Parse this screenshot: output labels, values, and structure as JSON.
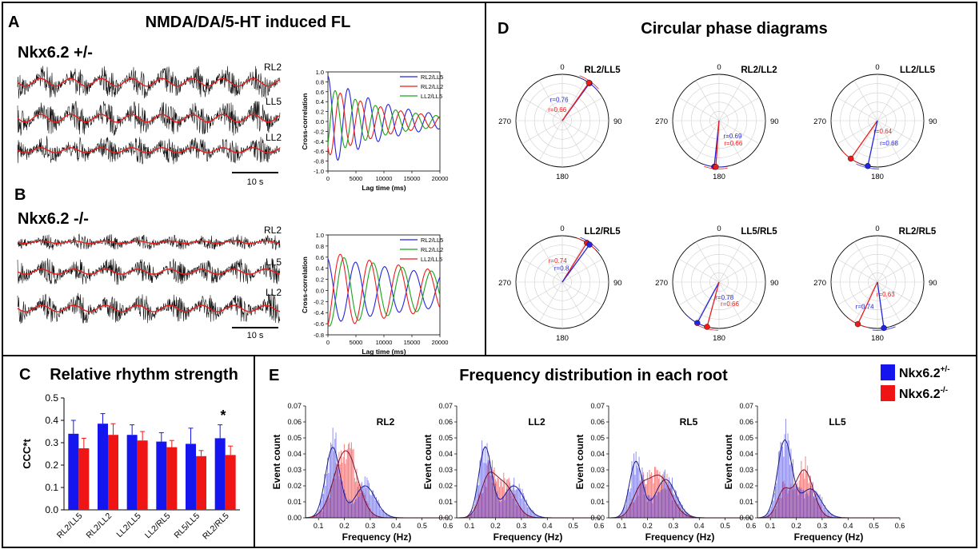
{
  "colors": {
    "blue": "#2323e0",
    "red": "#ee1b1b",
    "green": "#18a318",
    "black": "#000000",
    "purple": "#a03080"
  },
  "panel_a": {
    "letter": "A",
    "title": "NMDA/DA/5-HT induced FL",
    "genotype": "Nkx6.2 +/-",
    "trace_labels": [
      "RL2",
      "LL5",
      "LL2"
    ],
    "scale_bar": "10 s"
  },
  "panel_b": {
    "letter": "B",
    "genotype": "Nkx6.2 -/-",
    "trace_labels": [
      "RL2",
      "LL5",
      "LL2"
    ],
    "scale_bar": "10 s"
  },
  "panel_c": {
    "letter": "C",
    "title": "Relative rhythm strength",
    "asterisk": "*"
  },
  "panel_d": {
    "letter": "D",
    "title": "Circular phase diagrams",
    "angle_labels": [
      "0",
      "90",
      "180",
      "270"
    ]
  },
  "panel_e": {
    "letter": "E",
    "title": "Frequency distribution in each root",
    "legend": {
      "het_label": "Nkx6.2",
      "het_sup": "+/-",
      "ko_label": "Nkx6.2",
      "ko_sup": "-/-"
    }
  },
  "chart_data": [
    {
      "id": "xcorr_het",
      "type": "line",
      "title": "",
      "xlabel": "Lag time (ms)",
      "ylabel": "Cross-correlation",
      "xlim": [
        0,
        20000
      ],
      "ylim": [
        -1.0,
        1.0
      ],
      "xticks": [
        0,
        5000,
        10000,
        15000,
        20000
      ],
      "yticks": [
        -1.0,
        -0.8,
        -0.6,
        -0.4,
        -0.2,
        0.0,
        0.2,
        0.4,
        0.6,
        0.8,
        1.0
      ],
      "legend_position": "top-right",
      "series": [
        {
          "name": "RL2/LL5",
          "color": "#2323e0",
          "amp": 0.92,
          "period": 3600,
          "phase": 0,
          "decay": 11000
        },
        {
          "name": "RL2/LL2",
          "color": "#ee1b1b",
          "amp": 0.7,
          "period": 3600,
          "phase": 2.4,
          "decay": 11000
        },
        {
          "name": "LL2/LL5",
          "color": "#18a318",
          "amp": 0.7,
          "period": 3600,
          "phase": 4.0,
          "decay": 11000
        }
      ]
    },
    {
      "id": "xcorr_ko",
      "type": "line",
      "title": "",
      "xlabel": "Lag time (ms)",
      "ylabel": "Cross-correlation",
      "xlim": [
        0,
        20000
      ],
      "ylim": [
        -0.8,
        1.0
      ],
      "xticks": [
        0,
        5000,
        10000,
        15000,
        20000
      ],
      "yticks": [
        -0.8,
        -0.6,
        -0.4,
        -0.2,
        0.0,
        0.2,
        0.4,
        0.6,
        0.8,
        1.0
      ],
      "legend_position": "top-right",
      "series": [
        {
          "name": "RL2/LL5",
          "color": "#2323e0",
          "amp": 0.6,
          "period": 5200,
          "phase": 0.3,
          "decay": 30000
        },
        {
          "name": "RL2/LL2",
          "color": "#18a318",
          "amp": 0.65,
          "period": 5200,
          "phase": 2.8,
          "decay": 30000
        },
        {
          "name": "LL2/LL5",
          "color": "#ee1b1b",
          "amp": 0.7,
          "period": 5200,
          "phase": 3.6,
          "decay": 30000
        }
      ]
    },
    {
      "id": "rhythm_strength",
      "type": "bar",
      "title": "Relative rhythm strength",
      "ylabel": "CCC*t",
      "ylim": [
        0.0,
        0.5
      ],
      "yticks": [
        0.0,
        0.1,
        0.2,
        0.3,
        0.4,
        0.5
      ],
      "categories": [
        "RL2/LL5",
        "RL2/LL2",
        "LL2/LL5",
        "LL2/RL5",
        "RL5/LL5",
        "RL2/RL5"
      ],
      "series": [
        {
          "name": "Nkx6.2 +/-",
          "color": "#1515f0",
          "values": [
            0.34,
            0.385,
            0.335,
            0.305,
            0.295,
            0.32
          ],
          "errors": [
            0.06,
            0.045,
            0.045,
            0.04,
            0.07,
            0.06
          ]
        },
        {
          "name": "Nkx6.2 -/-",
          "color": "#f01515",
          "values": [
            0.275,
            0.335,
            0.31,
            0.28,
            0.24,
            0.245
          ],
          "errors": [
            0.045,
            0.05,
            0.04,
            0.03,
            0.025,
            0.04
          ]
        }
      ]
    },
    {
      "id": "polar",
      "type": "scatter",
      "angle_labels": [
        "0",
        "90",
        "180",
        "270"
      ],
      "plots": [
        {
          "title": "RL2/LL5",
          "points": [
            {
              "color": "#2323e0",
              "deg": 36,
              "r": 0.76,
              "label": "r=0.76"
            },
            {
              "color": "#ee1b1b",
              "deg": 35,
              "r": 0.66,
              "label": "r=0.66"
            }
          ]
        },
        {
          "title": "RL2/LL2",
          "points": [
            {
              "color": "#2323e0",
              "deg": 186,
              "r": 0.69,
              "label": "r=0.69"
            },
            {
              "color": "#ee1b1b",
              "deg": 184,
              "r": 0.66,
              "label": "r=0.66"
            }
          ]
        },
        {
          "title": "LL2/LL5",
          "points": [
            {
              "color": "#ee1b1b",
              "deg": 215,
              "r": 0.64,
              "label": "r=0.64"
            },
            {
              "color": "#2323e0",
              "deg": 192,
              "r": 0.68,
              "label": "r=0.68"
            }
          ]
        },
        {
          "title": "LL2/RL5",
          "points": [
            {
              "color": "#ee1b1b",
              "deg": 32,
              "r": 0.74,
              "label": "r=0.74"
            },
            {
              "color": "#2323e0",
              "deg": 36,
              "r": 0.8,
              "label": "r=0.8"
            }
          ]
        },
        {
          "title": "LL5/RL5",
          "points": [
            {
              "color": "#2323e0",
              "deg": 208,
              "r": 0.78,
              "label": "r=0.78"
            },
            {
              "color": "#ee1b1b",
              "deg": 195,
              "r": 0.66,
              "label": "r=0.66"
            }
          ]
        },
        {
          "title": "RL2/RL5",
          "points": [
            {
              "color": "#ee1b1b",
              "deg": 205,
              "r": 0.63,
              "label": "r=0.63"
            },
            {
              "color": "#2323e0",
              "deg": 172,
              "r": 0.74,
              "label": "r=0.74"
            }
          ]
        }
      ]
    },
    {
      "id": "freq_hist",
      "type": "area",
      "xlabel": "Frequency (Hz)",
      "ylabel": "Event count",
      "xlim": [
        0.05,
        0.6
      ],
      "ylim": [
        0,
        0.07
      ],
      "xticks": [
        0.1,
        0.2,
        0.3,
        0.4,
        0.5,
        0.6
      ],
      "yticks": [
        0.0,
        0.01,
        0.02,
        0.03,
        0.04,
        0.05,
        0.06,
        0.07
      ],
      "plots": [
        {
          "title": "RL2",
          "het": [
            {
              "mu": 0.155,
              "sd": 0.028,
              "amp": 0.044
            },
            {
              "mu": 0.28,
              "sd": 0.04,
              "amp": 0.02
            }
          ],
          "ko": [
            {
              "mu": 0.205,
              "sd": 0.045,
              "amp": 0.042
            }
          ]
        },
        {
          "title": "LL2",
          "het": [
            {
              "mu": 0.16,
              "sd": 0.025,
              "amp": 0.044
            },
            {
              "mu": 0.27,
              "sd": 0.04,
              "amp": 0.02
            }
          ],
          "ko": [
            {
              "mu": 0.17,
              "sd": 0.03,
              "amp": 0.022
            },
            {
              "mu": 0.235,
              "sd": 0.04,
              "amp": 0.02
            }
          ]
        },
        {
          "title": "RL5",
          "het": [
            {
              "mu": 0.155,
              "sd": 0.025,
              "amp": 0.035
            },
            {
              "mu": 0.27,
              "sd": 0.04,
              "amp": 0.024
            }
          ],
          "ko": [
            {
              "mu": 0.17,
              "sd": 0.03,
              "amp": 0.014
            },
            {
              "mu": 0.245,
              "sd": 0.045,
              "amp": 0.026
            }
          ]
        },
        {
          "title": "LL5",
          "het": [
            {
              "mu": 0.155,
              "sd": 0.028,
              "amp": 0.048
            },
            {
              "mu": 0.255,
              "sd": 0.04,
              "amp": 0.018
            }
          ],
          "ko": [
            {
              "mu": 0.15,
              "sd": 0.025,
              "amp": 0.016
            },
            {
              "mu": 0.23,
              "sd": 0.035,
              "amp": 0.03
            }
          ]
        }
      ]
    }
  ]
}
